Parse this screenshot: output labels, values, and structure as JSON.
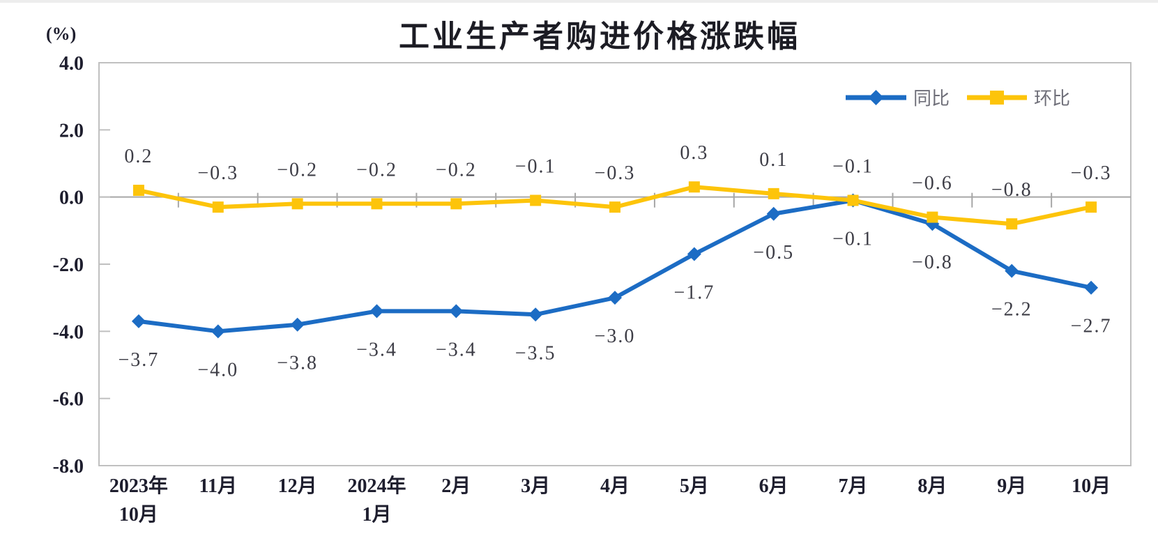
{
  "chart_data": {
    "type": "line",
    "title": "工业生产者购进价格涨跌幅",
    "unit_label": "(%)",
    "categories": [
      [
        "2023年",
        "10月"
      ],
      [
        "11月"
      ],
      [
        "12月"
      ],
      [
        "2024年",
        "1月"
      ],
      [
        "2月"
      ],
      [
        "3月"
      ],
      [
        "4月"
      ],
      [
        "5月"
      ],
      [
        "6月"
      ],
      [
        "7月"
      ],
      [
        "8月"
      ],
      [
        "9月"
      ],
      [
        "10月"
      ]
    ],
    "series": [
      {
        "name": "同比",
        "marker": "diamond",
        "color": "#1c6cc4",
        "label_position": "below",
        "values": [
          -3.7,
          -4.0,
          -3.8,
          -3.4,
          -3.4,
          -3.5,
          -3.0,
          -1.7,
          -0.5,
          -0.1,
          -0.8,
          -2.2,
          -2.7
        ],
        "labels": [
          "−3.7",
          "−4.0",
          "−3.8",
          "−3.4",
          "−3.4",
          "−3.5",
          "−3.0",
          "−1.7",
          "−0.5",
          "−0.1",
          "−0.8",
          "−2.2",
          "−2.7"
        ]
      },
      {
        "name": "环比",
        "marker": "square",
        "color": "#fdc40a",
        "label_position": "above",
        "values": [
          0.2,
          -0.3,
          -0.2,
          -0.2,
          -0.2,
          -0.1,
          -0.3,
          0.3,
          0.1,
          -0.1,
          -0.6,
          -0.8,
          -0.3
        ],
        "labels": [
          "0.2",
          "−0.3",
          "−0.2",
          "−0.2",
          "−0.2",
          "−0.1",
          "−0.3",
          "0.3",
          "0.1",
          "−0.1",
          "−0.6",
          "−0.8",
          "−0.3"
        ]
      }
    ],
    "y_axis": {
      "min": -8,
      "max": 4,
      "ticks": [
        {
          "v": 4,
          "label": "4.0"
        },
        {
          "v": 2,
          "label": "2.0"
        },
        {
          "v": 0,
          "label": "0.0"
        },
        {
          "v": -2,
          "label": "-2.0"
        },
        {
          "v": -4,
          "label": "-4.0"
        },
        {
          "v": -6,
          "label": "-6.0"
        },
        {
          "v": -8,
          "label": "-8.0"
        }
      ]
    },
    "legend": {
      "position": "top-right",
      "labels": [
        "同比",
        "环比"
      ]
    },
    "grid": "zero-line-only",
    "colors": {
      "axis_line": "#c0c0c0",
      "zero_line": "#a6a6a6",
      "data_label": "#3d3d46",
      "axis_text": "#1e1e2e",
      "legend_text": "#6e6e78",
      "title_text": "#1c1c24"
    }
  }
}
